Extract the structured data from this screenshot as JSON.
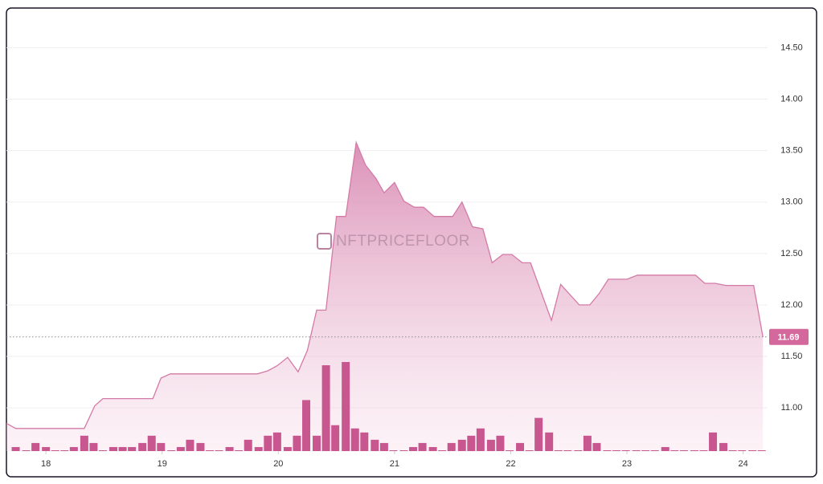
{
  "chart_data": {
    "type": "area",
    "watermark": "NFTPRICEFLOOR",
    "xlim": [
      17.66,
      24.21
    ],
    "xticks": [
      18,
      19,
      20,
      21,
      22,
      23,
      24
    ],
    "ylim": [
      10.58,
      14.87
    ],
    "yticks": [
      {
        "value": 11,
        "label": "11.00"
      },
      {
        "value": 11.5,
        "label": "11.50"
      },
      {
        "value": 12,
        "label": "12.00"
      },
      {
        "value": 12.5,
        "label": "12.50"
      },
      {
        "value": 13,
        "label": "13.00"
      },
      {
        "value": 13.5,
        "label": "13.50"
      },
      {
        "value": 14,
        "label": "14.00"
      },
      {
        "value": 14.5,
        "label": "14.50"
      }
    ],
    "grid": true,
    "last_price": 11.69,
    "series": [
      {
        "color": "#d47aa6",
        "x": [
          17.66,
          17.74,
          18.33,
          18.42,
          18.49,
          18.92,
          18.99,
          19.07,
          19.82,
          19.91,
          19.99,
          20.08,
          20.17,
          20.25,
          20.33,
          20.41,
          20.5,
          20.58,
          20.67,
          20.75,
          20.84,
          20.91,
          21.0,
          21.08,
          21.17,
          21.25,
          21.34,
          21.5,
          21.58,
          21.67,
          21.76,
          21.84,
          21.93,
          22.01,
          22.1,
          22.17,
          22.35,
          22.43,
          22.59,
          22.68,
          22.76,
          22.84,
          23.0,
          23.09,
          23.59,
          23.67,
          23.76,
          23.85,
          24.09,
          24.17
        ],
        "values": [
          10.85,
          10.8,
          10.8,
          11.02,
          11.09,
          11.09,
          11.29,
          11.33,
          11.33,
          11.36,
          11.41,
          11.49,
          11.35,
          11.56,
          11.95,
          11.95,
          12.86,
          12.86,
          13.58,
          13.36,
          13.23,
          13.09,
          13.19,
          13.01,
          12.95,
          12.95,
          12.86,
          12.86,
          13.0,
          12.76,
          12.74,
          12.41,
          12.49,
          12.49,
          12.41,
          12.41,
          11.85,
          12.2,
          12.0,
          12.0,
          12.11,
          12.25,
          12.25,
          12.29,
          12.29,
          12.21,
          12.21,
          12.19,
          12.19,
          11.69
        ]
      },
      {
        "color": "#c9578f",
        "kind": "volume",
        "x": [
          17.74,
          17.83,
          17.91,
          18.0,
          18.08,
          18.16,
          18.24,
          18.33,
          18.41,
          18.49,
          18.58,
          18.66,
          18.74,
          18.83,
          18.91,
          18.99,
          19.08,
          19.16,
          19.24,
          19.33,
          19.41,
          19.49,
          19.58,
          19.66,
          19.74,
          19.83,
          19.91,
          19.99,
          20.08,
          20.16,
          20.24,
          20.33,
          20.41,
          20.49,
          20.58,
          20.66,
          20.74,
          20.83,
          20.91,
          20.99,
          21.08,
          21.16,
          21.24,
          21.33,
          21.41,
          21.49,
          21.58,
          21.66,
          21.74,
          21.83,
          21.91,
          21.99,
          22.08,
          22.16,
          22.24,
          22.33,
          22.41,
          22.49,
          22.58,
          22.66,
          22.74,
          22.83,
          22.91,
          22.99,
          23.08,
          23.16,
          23.24,
          23.33,
          23.41,
          23.49,
          23.58,
          23.66,
          23.74,
          23.83,
          23.91,
          23.99,
          24.08,
          24.16
        ],
        "values": [
          4,
          0,
          9,
          4,
          0,
          0,
          4,
          18,
          9,
          0,
          4,
          4,
          4,
          9,
          18,
          9,
          0,
          4,
          13,
          9,
          0,
          0,
          4,
          0,
          13,
          4,
          18,
          22,
          4,
          18,
          62,
          18,
          105,
          31,
          109,
          27,
          22,
          13,
          9,
          0,
          0,
          4,
          9,
          4,
          0,
          9,
          13,
          18,
          27,
          13,
          18,
          0,
          9,
          0,
          40,
          22,
          0,
          0,
          0,
          18,
          9,
          0,
          0,
          0,
          0,
          0,
          0,
          4,
          0,
          0,
          0,
          0,
          22,
          9,
          0,
          0,
          0,
          0
        ]
      }
    ]
  }
}
